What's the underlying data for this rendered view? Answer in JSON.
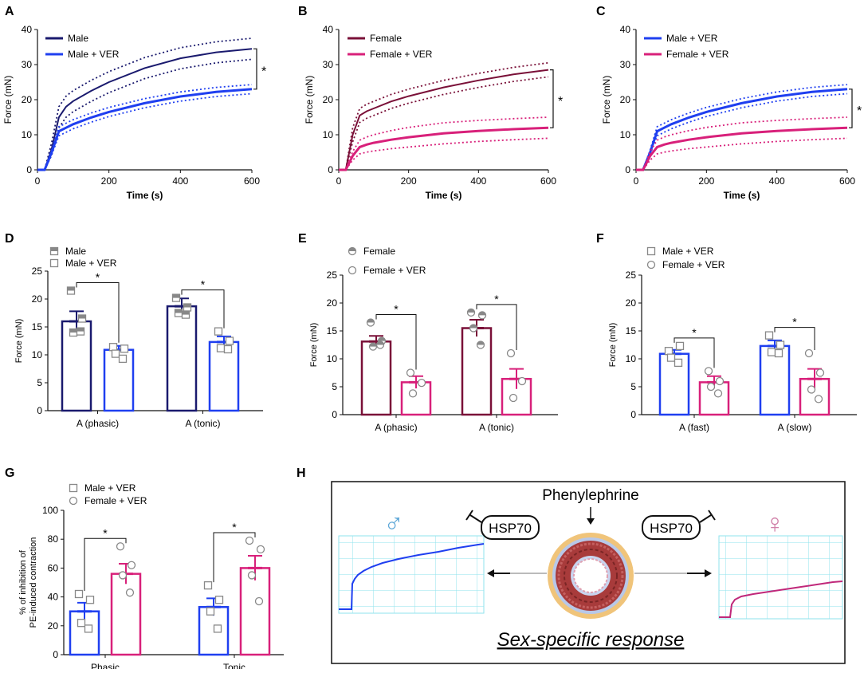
{
  "colors": {
    "male": "#1a1a6e",
    "male_ver": "#1f3ff0",
    "female": "#7a1038",
    "female_ver": "#d8207a",
    "grid": "#8fe3ee",
    "vessel_outer": "#f0c47a",
    "vessel_mid": "#b8c8e8",
    "vessel_wall": "#a83b3b",
    "male_symbol": "#5fa8d8",
    "female_symbol": "#d080a8"
  },
  "chart_data": [
    {
      "panel": "A",
      "type": "line",
      "xlabel": "Time (s)",
      "ylabel": "Force (mN)",
      "xlim": [
        0,
        600
      ],
      "ylim": [
        0,
        40
      ],
      "xticks": [
        "0",
        "200",
        "400",
        "600"
      ],
      "yticks": [
        "0",
        "10",
        "20",
        "30",
        "40"
      ],
      "series": [
        {
          "name": "Male",
          "color_key": "male",
          "x": [
            0,
            20,
            40,
            60,
            80,
            100,
            150,
            200,
            300,
            400,
            500,
            600
          ],
          "mean": [
            0,
            0,
            6,
            15,
            18,
            19.6,
            22.5,
            25,
            29,
            31.8,
            33.5,
            34.5
          ],
          "sem": 3
        },
        {
          "name": "Male + VER",
          "color_key": "male_ver",
          "x": [
            0,
            20,
            40,
            60,
            80,
            100,
            150,
            200,
            300,
            400,
            500,
            600
          ],
          "mean": [
            0,
            0,
            5,
            11,
            12,
            13,
            14.9,
            16.5,
            19,
            20.9,
            22.2,
            23
          ],
          "sem": 1.3
        }
      ],
      "significance": {
        "label": "*",
        "y_from": 34.5,
        "y_to": 23
      }
    },
    {
      "panel": "B",
      "type": "line",
      "xlabel": "Time (s)",
      "ylabel": "Force (mN)",
      "xlim": [
        0,
        600
      ],
      "ylim": [
        0,
        40
      ],
      "xticks": [
        "0",
        "200",
        "400",
        "600"
      ],
      "yticks": [
        "0",
        "10",
        "20",
        "30",
        "40"
      ],
      "series": [
        {
          "name": "Female",
          "color_key": "female",
          "x": [
            0,
            20,
            40,
            60,
            80,
            100,
            150,
            200,
            300,
            400,
            500,
            600
          ],
          "mean": [
            0,
            0,
            10,
            15.5,
            16.7,
            17.5,
            19.5,
            21,
            23.5,
            25.5,
            27.2,
            28.5
          ],
          "sem": 2
        },
        {
          "name": "Female + VER",
          "color_key": "female_ver",
          "x": [
            0,
            20,
            40,
            60,
            80,
            100,
            150,
            200,
            300,
            400,
            500,
            600
          ],
          "mean": [
            0,
            0,
            4,
            6.5,
            7.2,
            7.7,
            8.6,
            9.3,
            10.4,
            11.1,
            11.6,
            12
          ],
          "sem": 3
        }
      ],
      "significance": {
        "label": "*",
        "y_from": 28.5,
        "y_to": 12
      }
    },
    {
      "panel": "C",
      "type": "line",
      "xlabel": "Time (s)",
      "ylabel": "Force (mN)",
      "xlim": [
        0,
        600
      ],
      "ylim": [
        0,
        40
      ],
      "xticks": [
        "0",
        "200",
        "400",
        "600"
      ],
      "yticks": [
        "0",
        "10",
        "20",
        "30",
        "40"
      ],
      "series": [
        {
          "name": "Male + VER",
          "color_key": "male_ver",
          "x": [
            0,
            20,
            40,
            60,
            80,
            100,
            150,
            200,
            300,
            400,
            500,
            600
          ],
          "mean": [
            0,
            0,
            5,
            11,
            12,
            13,
            14.9,
            16.5,
            19,
            20.9,
            22.2,
            23
          ],
          "sem": 1.3
        },
        {
          "name": "Female + VER",
          "color_key": "female_ver",
          "x": [
            0,
            20,
            40,
            60,
            80,
            100,
            150,
            200,
            300,
            400,
            500,
            600
          ],
          "mean": [
            0,
            0,
            4,
            6.5,
            7.2,
            7.7,
            8.6,
            9.3,
            10.4,
            11.1,
            11.6,
            12
          ],
          "sem": 3
        }
      ],
      "significance": {
        "label": "*",
        "y_from": 23,
        "y_to": 12
      }
    },
    {
      "panel": "D",
      "type": "bar",
      "ylabel": "Force (mN)",
      "ylim": [
        0,
        25
      ],
      "yticks": [
        "0",
        "5",
        "10",
        "15",
        "20",
        "25"
      ],
      "categories": [
        "A (phasic)",
        "A (tonic)"
      ],
      "series": [
        {
          "name": "Male",
          "color_key": "male",
          "marker": "square-half",
          "values": [
            16,
            18.7
          ],
          "sem": [
            1.8,
            1.4
          ],
          "points": [
            [
              21.5,
              16.5,
              14,
              14.2
            ],
            [
              20.2,
              18.5,
              17.5,
              17.2
            ]
          ]
        },
        {
          "name": "Male + VER",
          "color_key": "male_ver",
          "marker": "square",
          "values": [
            10.9,
            12.3
          ],
          "sem": [
            0.7,
            1.0
          ],
          "points": [
            [
              11.4,
              11.1,
              10.2,
              9.3
            ],
            [
              14.2,
              12.5,
              11.2,
              11.0
            ]
          ]
        }
      ],
      "significance": [
        "*",
        "*"
      ]
    },
    {
      "panel": "E",
      "type": "bar",
      "ylabel": "Force (mN)",
      "ylim": [
        0,
        25
      ],
      "yticks": [
        "0",
        "5",
        "10",
        "15",
        "20",
        "25"
      ],
      "categories": [
        "A (phasic)",
        "A (tonic)"
      ],
      "series": [
        {
          "name": "Female",
          "color_key": "female",
          "marker": "circle-half",
          "values": [
            13.1,
            15.5
          ],
          "sem": [
            1.0,
            1.5
          ],
          "points": [
            [
              16.5,
              13.2,
              12.2,
              12.5
            ],
            [
              18.3,
              17.8,
              15.5,
              12.5
            ]
          ]
        },
        {
          "name": "Female + VER",
          "color_key": "female_ver",
          "marker": "circle",
          "values": [
            5.8,
            6.4
          ],
          "sem": [
            1.1,
            1.8
          ],
          "points": [
            [
              7.5,
              5.7,
              3.8
            ],
            [
              11.0,
              6.0,
              3.0
            ]
          ]
        }
      ],
      "significance": [
        "*",
        "*"
      ]
    },
    {
      "panel": "F",
      "type": "bar",
      "ylabel": "Force (mN)",
      "ylim": [
        0,
        25
      ],
      "yticks": [
        "0",
        "5",
        "10",
        "15",
        "20",
        "25"
      ],
      "categories": [
        "A (fast)",
        "A (slow)"
      ],
      "series": [
        {
          "name": "Male + VER",
          "color_key": "male_ver",
          "marker": "square",
          "values": [
            10.9,
            12.3
          ],
          "sem": [
            0.7,
            1.0
          ],
          "points": [
            [
              11.4,
              12.3,
              10.2,
              9.3
            ],
            [
              14.2,
              12.5,
              11.2,
              11.0
            ]
          ]
        },
        {
          "name": "Female + VER",
          "color_key": "female_ver",
          "marker": "circle",
          "values": [
            5.8,
            6.4
          ],
          "sem": [
            1.1,
            1.8
          ],
          "points": [
            [
              7.8,
              6.0,
              5.0,
              3.8
            ],
            [
              11.0,
              7.5,
              4.5,
              2.8
            ]
          ]
        }
      ],
      "significance": [
        "*",
        "*"
      ]
    },
    {
      "panel": "G",
      "type": "bar",
      "ylabel_lines": [
        "% of inhibition of",
        "PE-induced contraction"
      ],
      "ylim": [
        0,
        100
      ],
      "yticks": [
        "0",
        "20",
        "40",
        "60",
        "80",
        "100"
      ],
      "categories": [
        "Phasic",
        "Tonic"
      ],
      "series": [
        {
          "name": "Male + VER",
          "color_key": "male_ver",
          "marker": "square",
          "values": [
            30,
            33
          ],
          "sem": [
            6,
            6
          ],
          "points": [
            [
              42,
              38,
              22,
              18
            ],
            [
              48,
              38,
              30,
              18
            ]
          ]
        },
        {
          "name": "Female + VER",
          "color_key": "female_ver",
          "marker": "circle",
          "values": [
            56,
            60
          ],
          "sem": [
            7,
            8.5
          ],
          "points": [
            [
              75,
              62,
              55,
              43
            ],
            [
              79,
              73,
              55,
              37
            ]
          ]
        }
      ],
      "significance": [
        "*",
        "*"
      ]
    }
  ],
  "panel_labels": {
    "A": "A",
    "B": "B",
    "C": "C",
    "D": "D",
    "E": "E",
    "F": "F",
    "G": "G",
    "H": "H"
  },
  "schematic": {
    "title": "Phenylephrine",
    "left_box": "HSP70",
    "right_box": "HSP70",
    "male_symbol": "♂",
    "female_symbol": "♀",
    "caption": "Sex-specific response"
  }
}
